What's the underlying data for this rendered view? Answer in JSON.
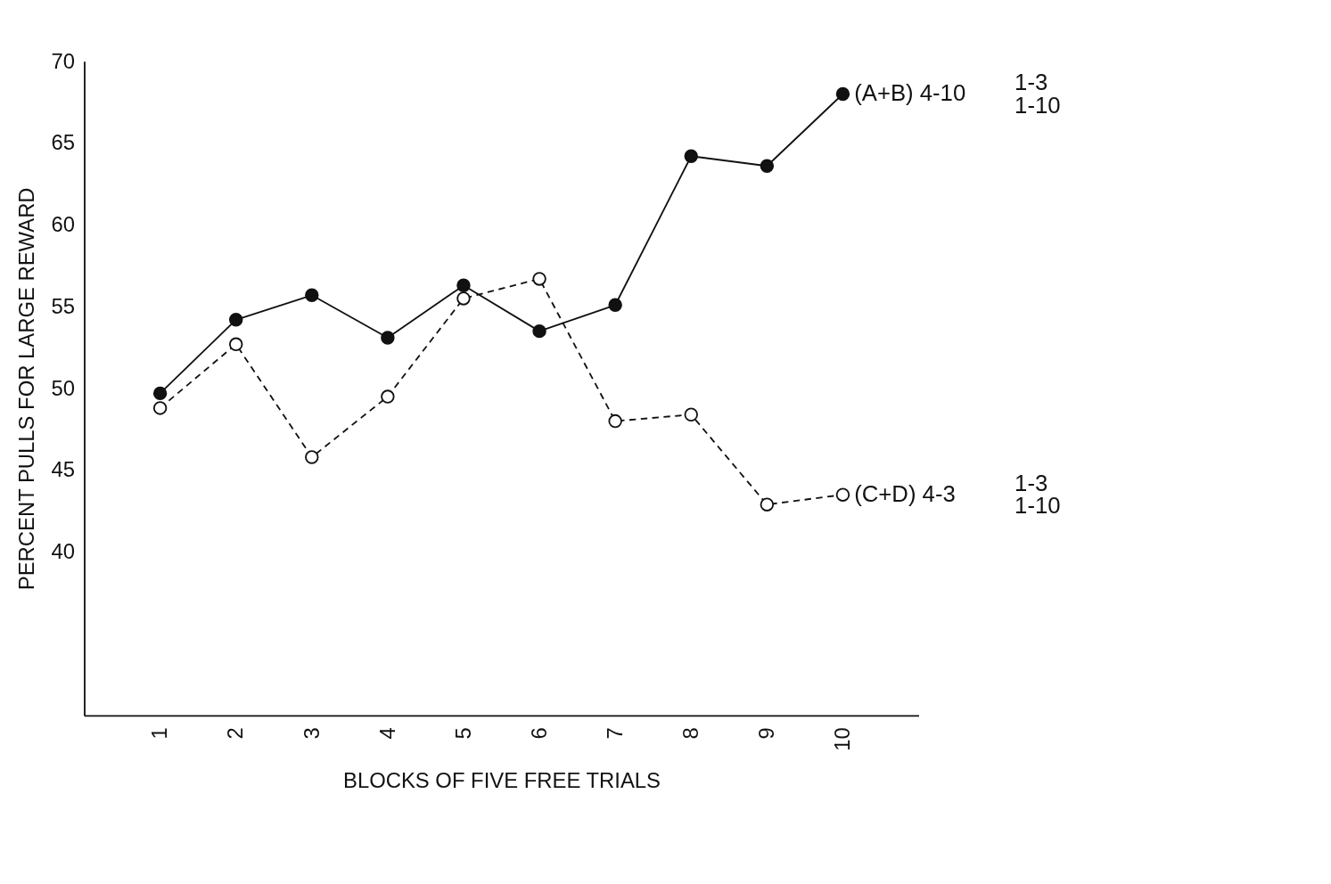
{
  "chart_data": {
    "type": "line",
    "xlabel": "BLOCKS OF FIVE FREE TRIALS",
    "ylabel": "PERCENT PULLS FOR LARGE REWARD",
    "categories": [
      "1",
      "2",
      "3",
      "4",
      "5",
      "6",
      "7",
      "8",
      "9",
      "10"
    ],
    "series": [
      {
        "name": "(A+B) 4-10",
        "color": "#111111",
        "line_style": "solid",
        "marker": "circle",
        "values": [
          49.7,
          54.2,
          55.7,
          53.1,
          56.3,
          53.5,
          55.1,
          64.2,
          63.6,
          68.0
        ]
      },
      {
        "name": "(C+D) 4-3",
        "color": "#111111",
        "line_style": "dashed",
        "marker": "circle",
        "values": [
          48.8,
          52.7,
          45.8,
          49.5,
          55.5,
          56.7,
          48.0,
          48.4,
          42.9,
          43.5
        ]
      }
    ],
    "annotations": [
      "1-3",
      "1-10",
      "1-3",
      "1-10"
    ],
    "ylim": [
      30,
      70
    ],
    "yticks": [
      40,
      45,
      50,
      55,
      60,
      65,
      70
    ],
    "grid": false,
    "legend": false
  }
}
